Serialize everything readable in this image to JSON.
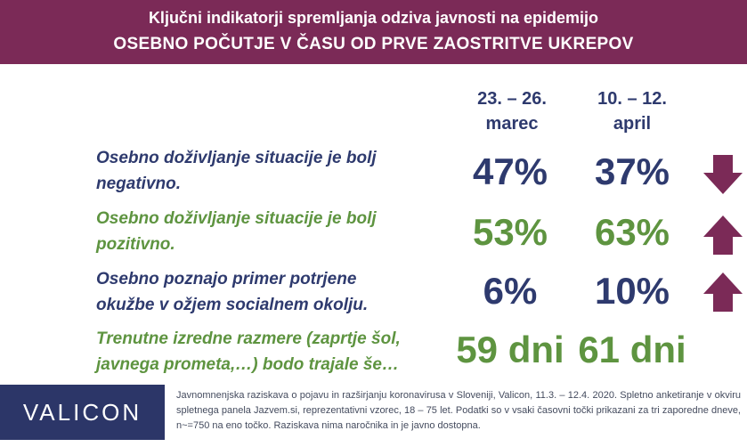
{
  "header": {
    "title": "Ključni indikatorji spremljanja odziva javnosti na epidemijo",
    "subtitle": "OSEBNO POČUTJE V ČASU OD PRVE ZAOSTRITVE UKREPOV"
  },
  "chart_data": {
    "type": "table",
    "columns": [
      {
        "line1": "23. – 26.",
        "line2": "marec"
      },
      {
        "line1": "10. – 12.",
        "line2": "april"
      }
    ],
    "rows": [
      {
        "line1": "Osebno doživljanje situacije je bolj",
        "line2": "negativno.",
        "values": [
          "47%",
          "37%"
        ],
        "color": "#2e3a6e",
        "trend": "down"
      },
      {
        "line1": "Osebno doživljanje situacije je bolj",
        "line2": "pozitivno.",
        "values": [
          "53%",
          "63%"
        ],
        "color": "#5e9440",
        "trend": "up"
      },
      {
        "line1": "Osebno poznajo primer potrjene",
        "line2": "okužbe v ožjem socialnem okolju.",
        "values": [
          "6%",
          "10%"
        ],
        "color": "#2e3a6e",
        "trend": "up"
      },
      {
        "line1": "Trenutne izredne razmere (zaprtje šol,",
        "line2": "javnega prometa,…) bodo trajale še…",
        "values": [
          "59 dni",
          "61 dni"
        ],
        "color": "#5e9440",
        "trend": ""
      }
    ]
  },
  "colors": {
    "banner": "#7b2a57",
    "arrow": "#7b2a57",
    "navy": "#2e3a6e",
    "green": "#5e9440",
    "logo_bg": "#2c3668"
  },
  "footer": {
    "logo": "VALICON",
    "note": "Javnomnenjska raziskava o pojavu in razširjanju koronavirusa v Sloveniji, Valicon, 11.3. – 12.4. 2020. Spletno anketiranje v okviru spletnega panela Jazvem.si, reprezentativni vzorec, 18 – 75 let. Podatki so v vsaki časovni točki prikazani za tri zaporedne dneve, n~=750 na eno točko. Raziskava nima naročnika in je javno dostopna."
  }
}
